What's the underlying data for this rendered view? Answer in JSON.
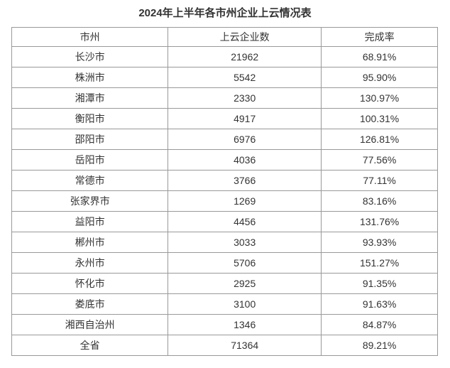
{
  "chart_data": {
    "type": "table",
    "title": "2024年上半年各市州企业上云情况表",
    "columns": [
      "市州",
      "上云企业数",
      "完成率"
    ],
    "rows": [
      {
        "region": "长沙市",
        "enterprises": "21962",
        "completion": "68.91%"
      },
      {
        "region": "株洲市",
        "enterprises": "5542",
        "completion": "95.90%"
      },
      {
        "region": "湘潭市",
        "enterprises": "2330",
        "completion": "130.97%"
      },
      {
        "region": "衡阳市",
        "enterprises": "4917",
        "completion": "100.31%"
      },
      {
        "region": "邵阳市",
        "enterprises": "6976",
        "completion": "126.81%"
      },
      {
        "region": "岳阳市",
        "enterprises": "4036",
        "completion": "77.56%"
      },
      {
        "region": "常德市",
        "enterprises": "3766",
        "completion": "77.11%"
      },
      {
        "region": "张家界市",
        "enterprises": "1269",
        "completion": "83.16%"
      },
      {
        "region": "益阳市",
        "enterprises": "4456",
        "completion": "131.76%"
      },
      {
        "region": "郴州市",
        "enterprises": "3033",
        "completion": "93.93%"
      },
      {
        "region": "永州市",
        "enterprises": "5706",
        "completion": "151.27%"
      },
      {
        "region": "怀化市",
        "enterprises": "2925",
        "completion": "91.35%"
      },
      {
        "region": "娄底市",
        "enterprises": "3100",
        "completion": "91.63%"
      },
      {
        "region": "湘西自治州",
        "enterprises": "1346",
        "completion": "84.87%"
      },
      {
        "region": "全省",
        "enterprises": "71364",
        "completion": "89.21%"
      }
    ]
  },
  "colors": {
    "border": "#999999",
    "text": "#333333",
    "background": "#ffffff"
  }
}
